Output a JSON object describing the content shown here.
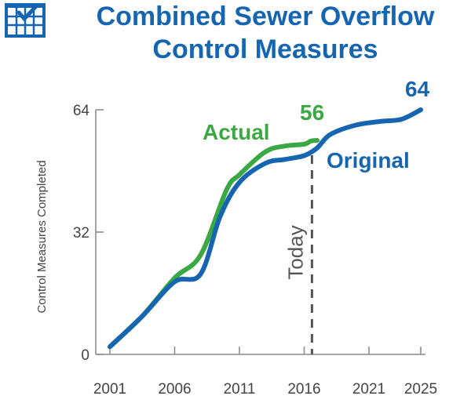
{
  "chart_data": {
    "type": "line",
    "title": [
      "Combined Sewer Overflow",
      "Control Measures"
    ],
    "ylabel": "Control Measures Completed",
    "xlim": [
      2001,
      2025
    ],
    "ylim": [
      0,
      64
    ],
    "xticks": [
      2001,
      2006,
      2011,
      2016,
      2021,
      2025
    ],
    "yticks": [
      0,
      32,
      64
    ],
    "today_label": "Today",
    "today_x": 2016.6,
    "series": [
      {
        "name": "Actual",
        "color": "#3aa843",
        "end_label": "56",
        "x": [
          2001,
          2003.5,
          2006,
          2008,
          2010,
          2011,
          2013,
          2014.5,
          2016,
          2016.5,
          2017
        ],
        "y": [
          2,
          10,
          20,
          26,
          43,
          47,
          53,
          54.5,
          55,
          55.8,
          56
        ]
      },
      {
        "name": "Original",
        "color": "#1565b0",
        "end_label": "64",
        "x": [
          2001,
          2003.5,
          2006,
          2008,
          2009.5,
          2011,
          2013,
          2014.5,
          2016,
          2017,
          2018,
          2020,
          2022,
          2023.5,
          2025
        ],
        "y": [
          2,
          10,
          19,
          21,
          36,
          45,
          50,
          51,
          52,
          54,
          57.5,
          60,
          61,
          61.5,
          64
        ]
      }
    ]
  },
  "icon": "calendar-check-icon"
}
